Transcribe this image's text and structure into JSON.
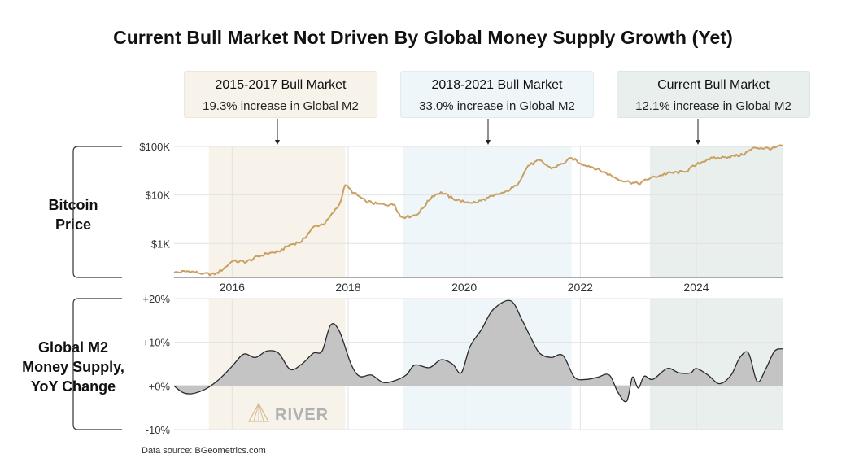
{
  "title": "Current Bull Market Not Driven By Global Money Supply Growth (Yet)",
  "callouts": [
    {
      "heading": "2015-2017 Bull Market",
      "sub": "19.3% increase in Global M2"
    },
    {
      "heading": "2018-2021 Bull Market",
      "sub": "33.0% increase in Global M2"
    },
    {
      "heading": "Current Bull Market",
      "sub": "12.1% increase in Global M2"
    }
  ],
  "labels": {
    "bitcoin_line1": "Bitcoin",
    "bitcoin_line2": "Price",
    "m2_line1": "Global M2",
    "m2_line2": "Money Supply,",
    "m2_line3": "YoY Change"
  },
  "source": "Data source: BGeometrics.com",
  "logo": "RIVER",
  "colors": {
    "btc_line": "#c9a062",
    "m2_fill": "#c4c4c4",
    "m2_line": "#2a2a2a",
    "period1": "#f8f3ea",
    "period2": "#eef6f9",
    "period3": "#e9efec"
  },
  "chart_data": [
    {
      "type": "line",
      "name": "Bitcoin Price",
      "yscale": "log",
      "ylim": [
        200,
        100000
      ],
      "xlim": [
        2015.0,
        2025.5
      ],
      "yticks": [
        {
          "value": 1000,
          "label": "$1K"
        },
        {
          "value": 10000,
          "label": "$10K"
        },
        {
          "value": 100000,
          "label": "$100K"
        }
      ],
      "xticks": [
        {
          "value": 2016,
          "label": "2016"
        },
        {
          "value": 2018,
          "label": "2018"
        },
        {
          "value": 2020,
          "label": "2020"
        },
        {
          "value": 2022,
          "label": "2022"
        },
        {
          "value": 2024,
          "label": "2024"
        }
      ],
      "shaded_periods": [
        {
          "start": 2015.6,
          "end": 2017.95
        },
        {
          "start": 2018.95,
          "end": 2021.85
        },
        {
          "start": 2023.2,
          "end": 2025.5
        }
      ],
      "x": [
        2015.0,
        2015.25,
        2015.5,
        2015.7,
        2015.85,
        2016.0,
        2016.25,
        2016.45,
        2016.6,
        2016.8,
        2017.0,
        2017.2,
        2017.4,
        2017.6,
        2017.75,
        2017.85,
        2017.95,
        2018.1,
        2018.3,
        2018.5,
        2018.8,
        2018.9,
        2019.0,
        2019.2,
        2019.45,
        2019.6,
        2019.8,
        2020.0,
        2020.2,
        2020.5,
        2020.7,
        2020.9,
        2021.1,
        2021.3,
        2021.5,
        2021.7,
        2021.85,
        2022.0,
        2022.2,
        2022.45,
        2022.7,
        2022.85,
        2023.0,
        2023.2,
        2023.5,
        2023.8,
        2024.0,
        2024.2,
        2024.5,
        2024.8,
        2025.0,
        2025.3,
        2025.5
      ],
      "y": [
        250,
        270,
        240,
        230,
        300,
        430,
        420,
        540,
        620,
        680,
        950,
        1100,
        2200,
        2600,
        4400,
        6500,
        16000,
        11000,
        7500,
        6500,
        6300,
        3600,
        3500,
        4000,
        9500,
        11500,
        8500,
        7200,
        7000,
        9500,
        11500,
        15500,
        40000,
        52000,
        35000,
        44000,
        58000,
        45000,
        38000,
        28000,
        20000,
        18500,
        17000,
        22000,
        28000,
        30000,
        42000,
        55000,
        60000,
        67000,
        95000,
        90000,
        105000
      ]
    },
    {
      "type": "area",
      "name": "Global M2 Money Supply, YoY Change",
      "ylim": [
        -10,
        20
      ],
      "yticks": [
        {
          "value": 20,
          "label": "+20%"
        },
        {
          "value": 10,
          "label": "+10%"
        },
        {
          "value": 0,
          "label": "+0%"
        },
        {
          "value": -10,
          "label": "-10%"
        }
      ],
      "x": [
        2015.0,
        2015.15,
        2015.3,
        2015.5,
        2015.65,
        2015.8,
        2016.0,
        2016.2,
        2016.4,
        2016.6,
        2016.8,
        2017.0,
        2017.2,
        2017.4,
        2017.55,
        2017.7,
        2017.85,
        2018.05,
        2018.2,
        2018.4,
        2018.6,
        2018.8,
        2019.0,
        2019.15,
        2019.4,
        2019.6,
        2019.8,
        2019.95,
        2020.1,
        2020.3,
        2020.5,
        2020.8,
        2021.0,
        2021.15,
        2021.3,
        2021.5,
        2021.7,
        2021.9,
        2022.1,
        2022.3,
        2022.5,
        2022.65,
        2022.8,
        2022.9,
        2023.0,
        2023.1,
        2023.25,
        2023.5,
        2023.7,
        2023.9,
        2024.0,
        2024.2,
        2024.4,
        2024.6,
        2024.75,
        2024.9,
        2025.05,
        2025.2,
        2025.35,
        2025.5
      ],
      "y": [
        0,
        -1.5,
        -1.8,
        -1.0,
        0.2,
        1.8,
        4.5,
        7.3,
        6.5,
        8.0,
        7.5,
        3.8,
        5.0,
        7.5,
        8.0,
        14.0,
        12.5,
        5.0,
        2.2,
        2.5,
        0.8,
        1.2,
        2.5,
        4.8,
        4.2,
        6.0,
        5.0,
        3.0,
        9.0,
        13.0,
        17.5,
        19.5,
        15.0,
        11.0,
        7.5,
        6.5,
        7.0,
        2.0,
        1.5,
        2.0,
        2.5,
        -1.5,
        -3.5,
        2.0,
        -0.5,
        2.2,
        1.5,
        4.0,
        3.0,
        3.0,
        4.0,
        2.5,
        0.5,
        2.5,
        6.5,
        7.5,
        1.0,
        4.0,
        8.0,
        8.5
      ]
    }
  ]
}
